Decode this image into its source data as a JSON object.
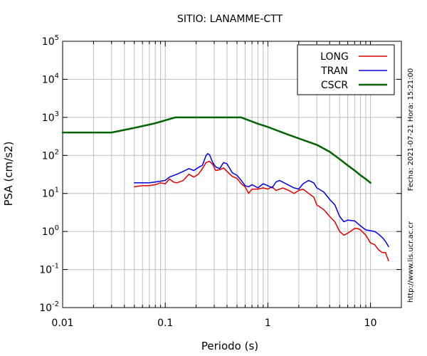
{
  "chart_data": {
    "type": "line",
    "title": "SITIO: LANAMME-CTT",
    "xlabel": "Periodo (s)",
    "ylabel": "PSA (cm/s2)",
    "x_scale": "log",
    "y_scale": "log",
    "xlim": [
      0.01,
      20
    ],
    "ylim": [
      0.01,
      100000
    ],
    "x_ticks": [
      {
        "value": 0.01,
        "label": "0.01"
      },
      {
        "value": 0.1,
        "label": "0.1"
      },
      {
        "value": 1,
        "label": "1"
      },
      {
        "value": 10,
        "label": "10"
      }
    ],
    "y_ticks": [
      {
        "value": 0.01,
        "base": "10",
        "exp": "-2"
      },
      {
        "value": 0.1,
        "base": "10",
        "exp": "-1"
      },
      {
        "value": 1,
        "base": "10",
        "exp": "0"
      },
      {
        "value": 10,
        "base": "10",
        "exp": "1"
      },
      {
        "value": 100,
        "base": "10",
        "exp": "2"
      },
      {
        "value": 1000,
        "base": "10",
        "exp": "3"
      },
      {
        "value": 10000,
        "base": "10",
        "exp": "4"
      },
      {
        "value": 100000,
        "base": "10",
        "exp": "5"
      }
    ],
    "grid": true,
    "legend_position": "top-right",
    "side_texts": {
      "date": "Fecha: 2021-07-21  Hora: 15:21:00",
      "url": "http://www.lis.ucr.ac.cr"
    },
    "series": [
      {
        "name": "LONG",
        "color": "#e00000",
        "points": [
          [
            0.05,
            15
          ],
          [
            0.06,
            16
          ],
          [
            0.07,
            16
          ],
          [
            0.08,
            17
          ],
          [
            0.09,
            19
          ],
          [
            0.1,
            18
          ],
          [
            0.11,
            24
          ],
          [
            0.12,
            20
          ],
          [
            0.13,
            19
          ],
          [
            0.15,
            22
          ],
          [
            0.17,
            32
          ],
          [
            0.19,
            27
          ],
          [
            0.21,
            32
          ],
          [
            0.23,
            45
          ],
          [
            0.25,
            65
          ],
          [
            0.27,
            70
          ],
          [
            0.29,
            58
          ],
          [
            0.31,
            40
          ],
          [
            0.34,
            42
          ],
          [
            0.37,
            47
          ],
          [
            0.4,
            38
          ],
          [
            0.45,
            28
          ],
          [
            0.5,
            25
          ],
          [
            0.55,
            18
          ],
          [
            0.6,
            15
          ],
          [
            0.65,
            10
          ],
          [
            0.7,
            13
          ],
          [
            0.8,
            13
          ],
          [
            0.9,
            14
          ],
          [
            1.0,
            13
          ],
          [
            1.1,
            15
          ],
          [
            1.2,
            12
          ],
          [
            1.4,
            14
          ],
          [
            1.6,
            12
          ],
          [
            1.8,
            10
          ],
          [
            2.0,
            12
          ],
          [
            2.2,
            13
          ],
          [
            2.5,
            10
          ],
          [
            2.8,
            8
          ],
          [
            3.0,
            5
          ],
          [
            3.5,
            3.8
          ],
          [
            4.0,
            2.5
          ],
          [
            4.5,
            1.8
          ],
          [
            5.0,
            1.0
          ],
          [
            5.5,
            0.8
          ],
          [
            6.0,
            0.9
          ],
          [
            7.0,
            1.2
          ],
          [
            7.5,
            1.2
          ],
          [
            8.0,
            1.1
          ],
          [
            9.0,
            0.8
          ],
          [
            10.0,
            0.5
          ],
          [
            11.0,
            0.45
          ],
          [
            12.0,
            0.33
          ],
          [
            13.0,
            0.28
          ],
          [
            14.0,
            0.28
          ],
          [
            15.0,
            0.17
          ]
        ]
      },
      {
        "name": "TRAN",
        "color": "#0000e0",
        "points": [
          [
            0.05,
            19
          ],
          [
            0.06,
            19
          ],
          [
            0.07,
            19
          ],
          [
            0.08,
            20
          ],
          [
            0.09,
            21
          ],
          [
            0.1,
            22
          ],
          [
            0.11,
            27
          ],
          [
            0.13,
            32
          ],
          [
            0.15,
            38
          ],
          [
            0.17,
            45
          ],
          [
            0.19,
            40
          ],
          [
            0.21,
            48
          ],
          [
            0.23,
            55
          ],
          [
            0.25,
            100
          ],
          [
            0.26,
            112
          ],
          [
            0.27,
            105
          ],
          [
            0.29,
            65
          ],
          [
            0.31,
            50
          ],
          [
            0.34,
            45
          ],
          [
            0.37,
            65
          ],
          [
            0.4,
            60
          ],
          [
            0.45,
            35
          ],
          [
            0.5,
            30
          ],
          [
            0.55,
            22
          ],
          [
            0.6,
            16
          ],
          [
            0.65,
            15
          ],
          [
            0.7,
            17
          ],
          [
            0.8,
            14
          ],
          [
            0.9,
            18
          ],
          [
            1.0,
            16
          ],
          [
            1.1,
            14
          ],
          [
            1.2,
            20
          ],
          [
            1.3,
            22
          ],
          [
            1.5,
            18
          ],
          [
            1.8,
            14
          ],
          [
            2.0,
            13
          ],
          [
            2.2,
            18
          ],
          [
            2.5,
            22
          ],
          [
            2.8,
            19
          ],
          [
            3.0,
            14
          ],
          [
            3.5,
            11
          ],
          [
            4.0,
            7
          ],
          [
            4.5,
            5
          ],
          [
            5.0,
            2.5
          ],
          [
            5.5,
            1.8
          ],
          [
            6.0,
            2.0
          ],
          [
            7.0,
            1.9
          ],
          [
            8.0,
            1.4
          ],
          [
            9.0,
            1.1
          ],
          [
            10.0,
            1.05
          ],
          [
            11.0,
            1.0
          ],
          [
            12.0,
            0.85
          ],
          [
            13.0,
            0.7
          ],
          [
            14.0,
            0.55
          ],
          [
            15.0,
            0.4
          ]
        ]
      },
      {
        "name": "CSCR",
        "color": "#006400",
        "points": [
          [
            0.01,
            400
          ],
          [
            0.03,
            400
          ],
          [
            0.05,
            530
          ],
          [
            0.08,
            700
          ],
          [
            0.125,
            1000
          ],
          [
            0.25,
            1000
          ],
          [
            0.55,
            1000
          ],
          [
            0.8,
            680
          ],
          [
            1.0,
            560
          ],
          [
            1.5,
            370
          ],
          [
            2.0,
            280
          ],
          [
            3.0,
            190
          ],
          [
            4.0,
            125
          ],
          [
            5.0,
            80
          ],
          [
            6.0,
            55
          ],
          [
            7.0,
            40
          ],
          [
            8.0,
            30
          ],
          [
            9.0,
            24
          ],
          [
            10.0,
            19
          ]
        ]
      }
    ]
  }
}
